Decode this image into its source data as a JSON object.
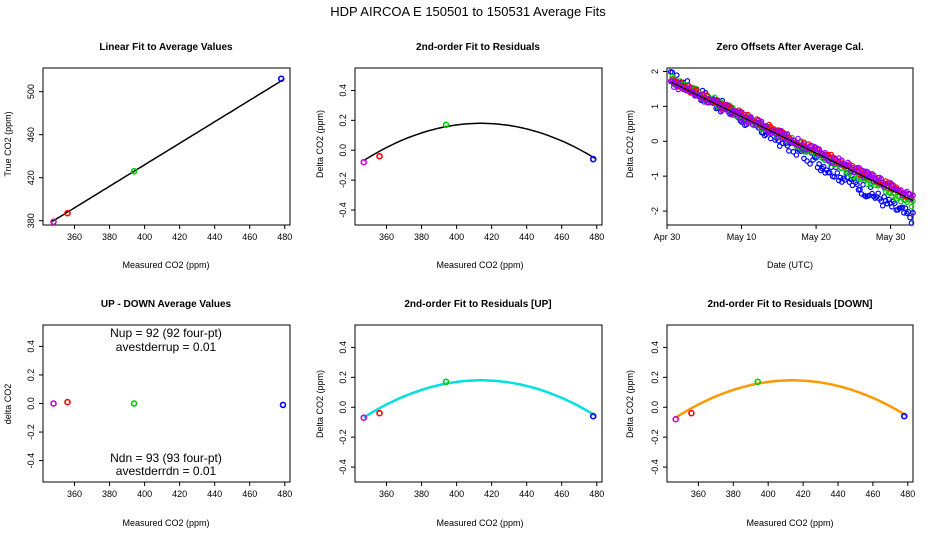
{
  "main_title": "HDP    AIRCOA E   150501 to 150531   Average Fits",
  "colors": {
    "black": "#000000",
    "red": "#ff0000",
    "green": "#00cc00",
    "blue": "#0000ff",
    "magenta": "#cc00cc",
    "purple": "#9900ff",
    "cyan": "#00e0e0",
    "orange": "#ff9900"
  },
  "chart_data": [
    {
      "type": "scatter",
      "title": "Linear Fit to Average Values",
      "xlabel": "Measured CO2 (ppm)",
      "ylabel": "True CO2 (ppm)",
      "xlim": [
        342,
        483
      ],
      "ylim": [
        376,
        522
      ],
      "xticks": [
        360,
        380,
        400,
        420,
        440,
        460,
        480
      ],
      "yticks": [
        380,
        420,
        460,
        500
      ],
      "points": [
        {
          "x": 348,
          "y": 379,
          "color": "magenta"
        },
        {
          "x": 356,
          "y": 387,
          "color": "red"
        },
        {
          "x": 394,
          "y": 426,
          "color": "green"
        },
        {
          "x": 478,
          "y": 512,
          "color": "blue"
        }
      ],
      "fit": {
        "kind": "linear",
        "slope": 1.0,
        "intercept": 32,
        "x0": 347,
        "x1": 479,
        "color": "black"
      }
    },
    {
      "type": "scatter",
      "title": "2nd-order Fit to Residuals",
      "xlabel": "Measured CO2 (ppm)",
      "ylabel": "Delta CO2 (ppm)",
      "xlim": [
        342,
        483
      ],
      "ylim": [
        -0.5,
        0.55
      ],
      "xticks": [
        360,
        380,
        400,
        420,
        440,
        460,
        480
      ],
      "yticks": [
        -0.4,
        -0.2,
        0.0,
        0.2,
        0.4
      ],
      "points": [
        {
          "x": 347,
          "y": -0.08,
          "color": "magenta"
        },
        {
          "x": 356,
          "y": -0.04,
          "color": "red"
        },
        {
          "x": 394,
          "y": 0.17,
          "color": "green"
        },
        {
          "x": 478,
          "y": -0.06,
          "color": "blue"
        }
      ],
      "fit": {
        "kind": "quadratic",
        "vertex_x": 414,
        "vertex_y": 0.18,
        "a": -5.55e-05,
        "x0": 347,
        "x1": 479,
        "color": "black"
      }
    },
    {
      "type": "scatter",
      "title": "Zero Offsets After Average Cal.",
      "xlabel": "Date (UTC)",
      "ylabel": "Delta CO2 (ppm)",
      "xlim": [
        0,
        33
      ],
      "ylim": [
        -2.4,
        2.1
      ],
      "xticks": [
        0,
        10,
        20,
        30
      ],
      "xticklabels": [
        "Apr 30",
        "May 10",
        "May 20",
        "May 30"
      ],
      "yticks": [
        -2,
        -1,
        0,
        1,
        2
      ],
      "series": [
        {
          "name": "blue",
          "color": "blue",
          "start": 1.85,
          "end": -2.2,
          "noise": 0.18
        },
        {
          "name": "green",
          "color": "green",
          "start": 1.8,
          "end": -1.8,
          "noise": 0.12
        },
        {
          "name": "red",
          "color": "red",
          "start": 1.75,
          "end": -1.6,
          "noise": 0.1
        },
        {
          "name": "magenta",
          "color": "purple",
          "start": 1.7,
          "end": -1.6,
          "noise": 0.12
        }
      ],
      "trend": {
        "start": 1.7,
        "end": -1.7,
        "color": "black"
      }
    },
    {
      "type": "scatter",
      "title": "UP - DOWN Average Values",
      "xlabel": "Measured CO2 (ppm)",
      "ylabel": "delta CO2",
      "xlim": [
        342,
        483
      ],
      "ylim": [
        -0.55,
        0.55
      ],
      "xticks": [
        360,
        380,
        400,
        420,
        440,
        460,
        480
      ],
      "yticks": [
        -0.4,
        -0.2,
        0.0,
        0.2,
        0.4
      ],
      "points": [
        {
          "x": 348,
          "y": 0.0,
          "color": "magenta"
        },
        {
          "x": 356,
          "y": 0.01,
          "color": "red"
        },
        {
          "x": 394,
          "y": 0.0,
          "color": "green"
        },
        {
          "x": 479,
          "y": -0.01,
          "color": "blue"
        }
      ],
      "annotations": {
        "nup": "Nup = 92 (92 four-pt)",
        "avestderrup": "avestderrup =  0.01",
        "ndn": "Ndn = 93 (93 four-pt)",
        "avestderrdn": "avestderrdn =  0.01"
      }
    },
    {
      "type": "scatter",
      "title": "2nd-order Fit to Residuals [UP]",
      "xlabel": "Measured CO2 (ppm)",
      "ylabel": "Delta CO2 (ppm)",
      "xlim": [
        342,
        483
      ],
      "ylim": [
        -0.5,
        0.55
      ],
      "xticks": [
        360,
        380,
        400,
        420,
        440,
        460,
        480
      ],
      "yticks": [
        -0.4,
        -0.2,
        0.0,
        0.2,
        0.4
      ],
      "points": [
        {
          "x": 347,
          "y": -0.07,
          "color": "magenta"
        },
        {
          "x": 356,
          "y": -0.04,
          "color": "red"
        },
        {
          "x": 394,
          "y": 0.17,
          "color": "green"
        },
        {
          "x": 478,
          "y": -0.06,
          "color": "blue"
        }
      ],
      "fit": {
        "kind": "quadratic",
        "vertex_x": 414,
        "vertex_y": 0.18,
        "a": -5.55e-05,
        "x0": 347,
        "x1": 479,
        "color": "cyan"
      }
    },
    {
      "type": "scatter",
      "title": "2nd-order Fit to Residuals [DOWN]",
      "xlabel": "Measured CO2 (ppm)",
      "ylabel": "Delta CO2 (ppm)",
      "xlim": [
        342,
        483
      ],
      "ylim": [
        -0.5,
        0.55
      ],
      "xticks": [
        360,
        380,
        400,
        420,
        440,
        460,
        480
      ],
      "yticks": [
        -0.4,
        -0.2,
        0.0,
        0.2,
        0.4
      ],
      "points": [
        {
          "x": 347,
          "y": -0.08,
          "color": "magenta"
        },
        {
          "x": 356,
          "y": -0.04,
          "color": "red"
        },
        {
          "x": 394,
          "y": 0.17,
          "color": "green"
        },
        {
          "x": 478,
          "y": -0.06,
          "color": "blue"
        }
      ],
      "fit": {
        "kind": "quadratic",
        "vertex_x": 414,
        "vertex_y": 0.18,
        "a": -5.55e-05,
        "x0": 347,
        "x1": 479,
        "color": "orange"
      }
    }
  ]
}
